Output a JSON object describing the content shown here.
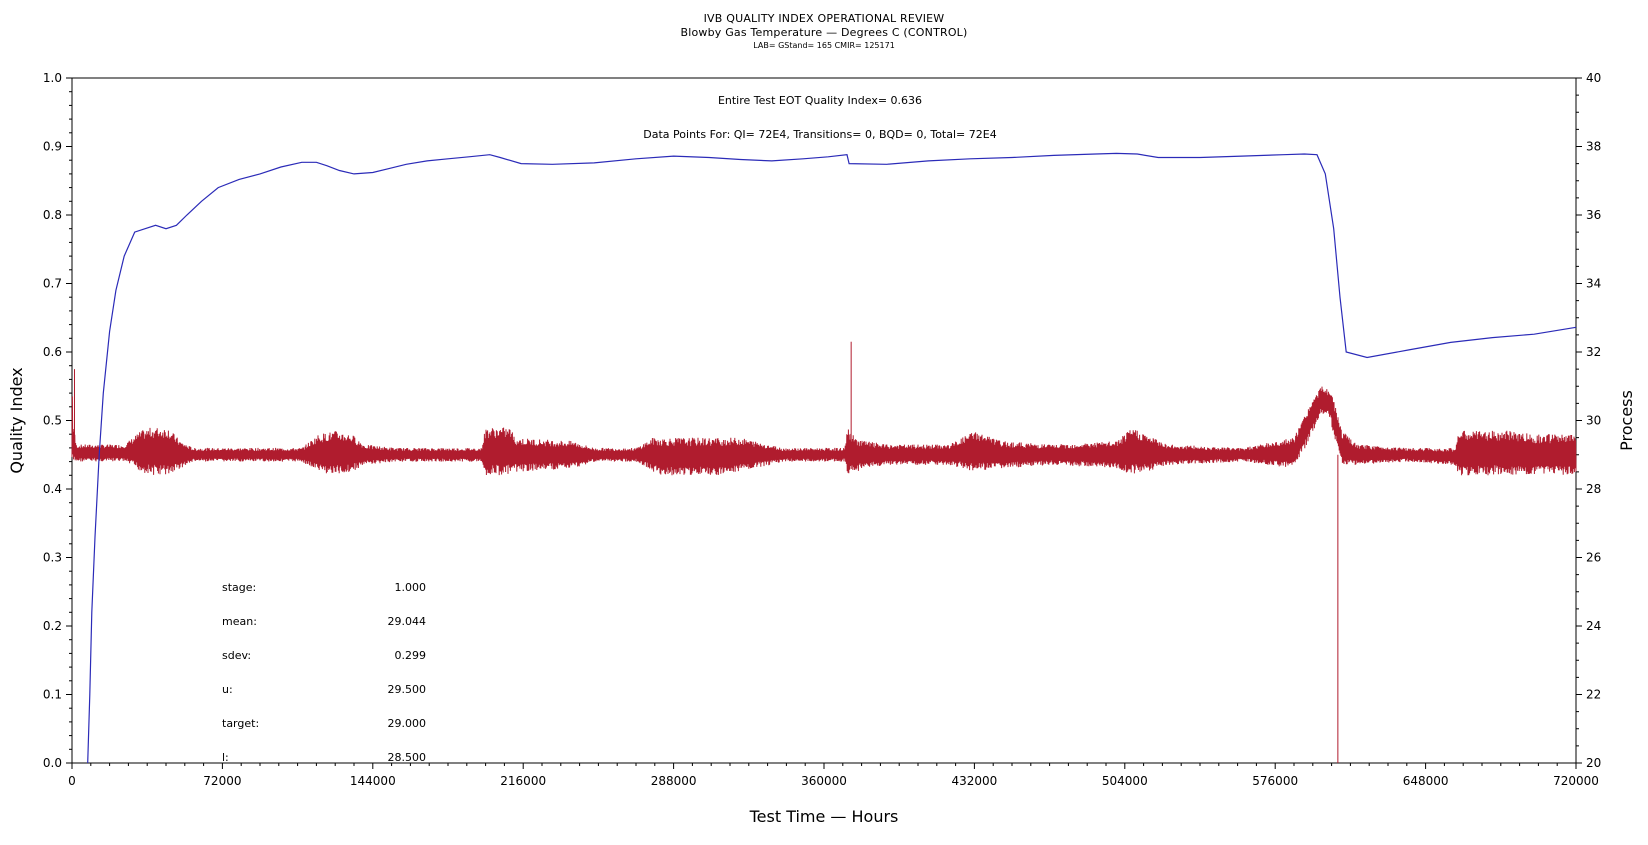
{
  "header": {
    "title": "IVB QUALITY INDEX OPERATIONAL REVIEW",
    "subtitle": "Blowby Gas Temperature — Degrees C (CONTROL)",
    "sub_subtitle": "LAB= GStand= 165 CMIR= 125171"
  },
  "annotations": {
    "quality_index_line": "Entire Test EOT Quality Index=   0.636",
    "data_points_line": "Data Points For: QI=  72E4, Transitions=      0, BQD=      0, Total=  72E4"
  },
  "stats": [
    {
      "label": "stage:",
      "value": "1.000"
    },
    {
      "label": "mean:",
      "value": "29.044"
    },
    {
      "label": "sdev:",
      "value": "0.299"
    },
    {
      "label": "u:",
      "value": "29.500"
    },
    {
      "label": "target:",
      "value": "29.000"
    },
    {
      "label": "l:",
      "value": "28.500"
    }
  ],
  "chart_data": {
    "type": "line",
    "xlabel": "Test Time — Hours",
    "ylabel_left": "Quality Index",
    "ylabel_right": "Process",
    "xlim": [
      0,
      720000
    ],
    "ylim_left": [
      0,
      1.0
    ],
    "ylim_right": [
      20,
      40
    ],
    "x_ticks": [
      "0",
      "72000",
      "144000",
      "216000",
      "288000",
      "360000",
      "432000",
      "504000",
      "576000",
      "648000",
      "720000"
    ],
    "y_left_ticks": [
      "0.0",
      "0.1",
      "0.2",
      "0.3",
      "0.4",
      "0.5",
      "0.6",
      "0.7",
      "0.8",
      "0.9",
      "1.0"
    ],
    "y_right_ticks": [
      "20",
      "22",
      "24",
      "26",
      "28",
      "30",
      "32",
      "34",
      "36",
      "38",
      "40"
    ],
    "colors": {
      "quality_index": "#2b2bb8",
      "process": "#b01c2e"
    },
    "series": [
      {
        "axis": "left",
        "x": [
          7500,
          8500,
          9500,
          11000,
          13000,
          15000,
          18000,
          21000,
          25000,
          30000,
          35000,
          40000,
          45000,
          50000,
          55000,
          62000,
          70000,
          80000,
          90000,
          100000,
          110000,
          117000,
          122000,
          128000,
          135000,
          144000,
          152000,
          160000,
          170000,
          180000,
          190000,
          200000,
          205000,
          215000,
          230000,
          250000,
          270000,
          288000,
          305000,
          320000,
          335000,
          350000,
          362000,
          371000,
          372000,
          390000,
          410000,
          430000,
          450000,
          470000,
          490000,
          500000,
          510000,
          520000,
          540000,
          560000,
          580000,
          590000,
          596000,
          600000,
          604000,
          607000,
          610000,
          620000,
          640000,
          660000,
          680000,
          700000,
          720000
        ],
        "y": [
          0.0,
          0.1,
          0.22,
          0.33,
          0.45,
          0.54,
          0.63,
          0.69,
          0.74,
          0.775,
          0.78,
          0.785,
          0.78,
          0.785,
          0.8,
          0.82,
          0.84,
          0.852,
          0.86,
          0.87,
          0.877,
          0.877,
          0.872,
          0.865,
          0.86,
          0.862,
          0.868,
          0.874,
          0.879,
          0.882,
          0.885,
          0.888,
          0.884,
          0.875,
          0.874,
          0.876,
          0.882,
          0.886,
          0.884,
          0.881,
          0.879,
          0.882,
          0.885,
          0.888,
          0.875,
          0.874,
          0.879,
          0.882,
          0.884,
          0.887,
          0.889,
          0.89,
          0.889,
          0.884,
          0.884,
          0.886,
          0.888,
          0.889,
          0.888,
          0.86,
          0.78,
          0.68,
          0.6,
          0.592,
          0.603,
          0.614,
          0.621,
          0.626,
          0.636
        ]
      },
      {
        "axis": "right",
        "envelope_x": [
          0,
          500,
          2000,
          5000,
          10000,
          18000,
          25000,
          33000,
          38000,
          46000,
          52000,
          58000,
          70000,
          90000,
          110000,
          118000,
          126000,
          134000,
          140000,
          155000,
          175000,
          196000,
          198000,
          210000,
          212000,
          240000,
          250000,
          270000,
          278000,
          282000,
          310000,
          320000,
          334000,
          340000,
          360000,
          370000,
          371000,
          375000,
          380000,
          390000,
          420000,
          432000,
          445000,
          470000,
          500000,
          508000,
          514000,
          525000,
          560000,
          585000,
          592000,
          598000,
          602000,
          604000,
          608000,
          615000,
          640000,
          662000,
          664000,
          690000,
          700000,
          720000
        ],
        "envelope_hi": [
          31.5,
          30.0,
          29.3,
          29.3,
          29.3,
          29.3,
          29.3,
          29.7,
          29.8,
          29.8,
          29.4,
          29.2,
          29.2,
          29.2,
          29.2,
          29.6,
          29.7,
          29.6,
          29.3,
          29.2,
          29.2,
          29.2,
          29.8,
          29.8,
          29.5,
          29.4,
          29.2,
          29.2,
          29.5,
          29.5,
          29.5,
          29.5,
          29.3,
          29.2,
          29.2,
          29.2,
          29.8,
          29.5,
          29.4,
          29.3,
          29.3,
          29.7,
          29.4,
          29.3,
          29.4,
          29.8,
          29.6,
          29.3,
          29.2,
          29.5,
          30.4,
          31.0,
          30.9,
          30.6,
          29.7,
          29.3,
          29.2,
          29.2,
          29.7,
          29.7,
          29.6,
          29.6
        ],
        "envelope_lo": [
          28.6,
          28.7,
          28.8,
          28.8,
          28.8,
          28.8,
          28.8,
          28.5,
          28.4,
          28.4,
          28.6,
          28.8,
          28.8,
          28.8,
          28.8,
          28.5,
          28.4,
          28.5,
          28.7,
          28.8,
          28.8,
          28.8,
          28.4,
          28.4,
          28.5,
          28.6,
          28.8,
          28.8,
          28.5,
          28.4,
          28.4,
          28.5,
          28.7,
          28.8,
          28.8,
          28.8,
          28.4,
          28.5,
          28.6,
          28.7,
          28.7,
          28.5,
          28.6,
          28.7,
          28.6,
          28.4,
          28.5,
          28.7,
          28.8,
          28.6,
          29.4,
          30.2,
          30.1,
          29.6,
          28.7,
          28.7,
          28.8,
          28.7,
          28.4,
          28.4,
          28.4,
          28.4
        ],
        "spikes": [
          {
            "x": 373000,
            "from": 29.0,
            "to": 32.3
          },
          {
            "x": 606000,
            "from": 29.0,
            "to": 20.0
          },
          {
            "x": 1200,
            "from": 29.0,
            "to": 31.5
          }
        ]
      }
    ]
  }
}
